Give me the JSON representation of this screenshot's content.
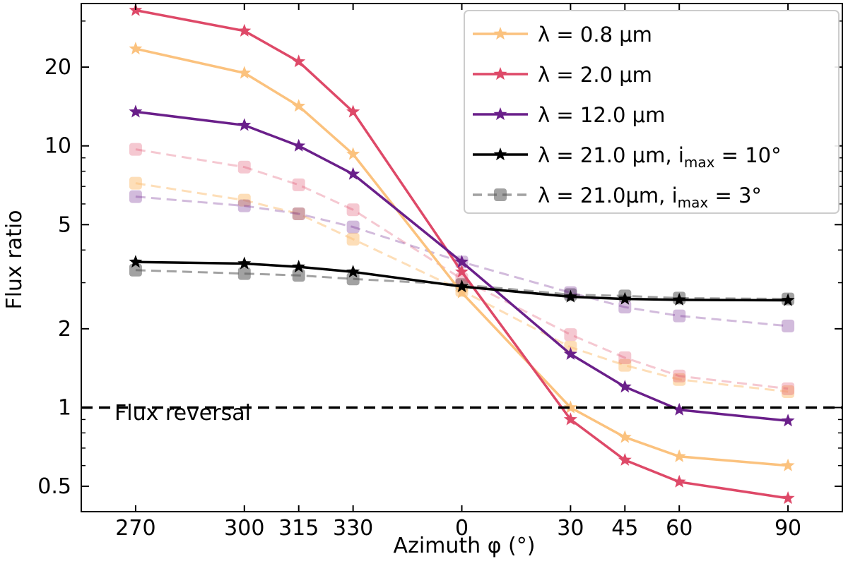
{
  "chart_data": {
    "type": "line",
    "title": "",
    "xlabel": "Azimuth φ (°)",
    "ylabel": "Flux ratio",
    "yscale": "log",
    "ylim": [
      0.4,
      35
    ],
    "categories": [
      "270",
      "300",
      "315",
      "330",
      "0",
      "30",
      "45",
      "60",
      "90"
    ],
    "x": [
      270,
      300,
      315,
      330,
      360,
      390,
      405,
      420,
      450
    ],
    "yticks": [
      0.5,
      1,
      2,
      5,
      10,
      20
    ],
    "ytick_labels": [
      "0.5",
      "1",
      "2",
      "5",
      "10",
      "20"
    ],
    "legend_position": "top-right",
    "series": [
      {
        "name": "λ = 0.8 μm",
        "legend_main": "λ = 0.8 μm",
        "legend_sub": "",
        "legend_tail": "",
        "color": "#fbc27e",
        "linestyle": "solid",
        "marker": "star",
        "opacity": 1,
        "values": [
          23.5,
          19,
          14.2,
          9.3,
          2.75,
          1.0,
          0.77,
          0.65,
          0.6
        ]
      },
      {
        "name": "λ = 2.0 μm",
        "legend_main": "λ = 2.0 μm",
        "legend_sub": "",
        "legend_tail": "",
        "color": "#de4968",
        "linestyle": "solid",
        "marker": "star",
        "opacity": 1,
        "values": [
          33,
          27.5,
          21,
          13.5,
          3.3,
          0.9,
          0.63,
          0.52,
          0.45
        ]
      },
      {
        "name": "λ = 12.0 μm",
        "legend_main": "λ = 12.0 μm",
        "legend_sub": "",
        "legend_tail": "",
        "color": "#6a1f8a",
        "linestyle": "solid",
        "marker": "star",
        "opacity": 1,
        "values": [
          13.5,
          12,
          10,
          7.8,
          3.6,
          1.6,
          1.2,
          0.98,
          0.89
        ]
      },
      {
        "name": "λ = 21.0 μm, i_max = 10°",
        "legend_main": "λ = 21.0 μm, i",
        "legend_sub": "max",
        "legend_tail": " = 10°",
        "color": "#000000",
        "linestyle": "solid",
        "marker": "star",
        "opacity": 1,
        "values": [
          3.6,
          3.55,
          3.45,
          3.3,
          2.9,
          2.65,
          2.6,
          2.58,
          2.57
        ]
      },
      {
        "name": "λ = 21.0μm, i_max = 3°",
        "legend_main": "λ = 21.0μm, i",
        "legend_sub": "max",
        "legend_tail": " = 3°",
        "color": "#555555",
        "linestyle": "dashed",
        "marker": "square",
        "opacity": 0.55,
        "values": [
          3.35,
          3.25,
          3.2,
          3.1,
          2.95,
          2.7,
          2.67,
          2.62,
          2.6
        ]
      },
      {
        "name": "λ = 0.8 μm, i_max = 3°",
        "legend_main": "",
        "legend_sub": "",
        "legend_tail": "",
        "color": "#fbc27e",
        "linestyle": "dashed",
        "marker": "square",
        "opacity": 0.55,
        "in_legend": false,
        "values": [
          7.2,
          6.2,
          5.5,
          4.4,
          2.8,
          1.7,
          1.45,
          1.28,
          1.15
        ]
      },
      {
        "name": "λ = 2.0 μm, i_max = 3°",
        "legend_main": "",
        "legend_sub": "",
        "legend_tail": "",
        "color": "#de4968",
        "linestyle": "dashed",
        "marker": "square",
        "opacity": 0.3,
        "in_legend": false,
        "values": [
          9.7,
          8.3,
          7.1,
          5.7,
          3.1,
          1.9,
          1.55,
          1.32,
          1.18
        ]
      },
      {
        "name": "λ = 12.0 μm, i_max = 3°",
        "legend_main": "",
        "legend_sub": "",
        "legend_tail": "",
        "color": "#6a1f8a",
        "linestyle": "dashed",
        "marker": "square",
        "opacity": 0.3,
        "in_legend": false,
        "values": [
          6.4,
          5.9,
          5.5,
          4.9,
          3.6,
          2.75,
          2.42,
          2.24,
          2.05
        ]
      }
    ],
    "reference_line": {
      "y": 1,
      "label": "Flux reversal",
      "color": "#000000",
      "linestyle": "dashed"
    }
  }
}
